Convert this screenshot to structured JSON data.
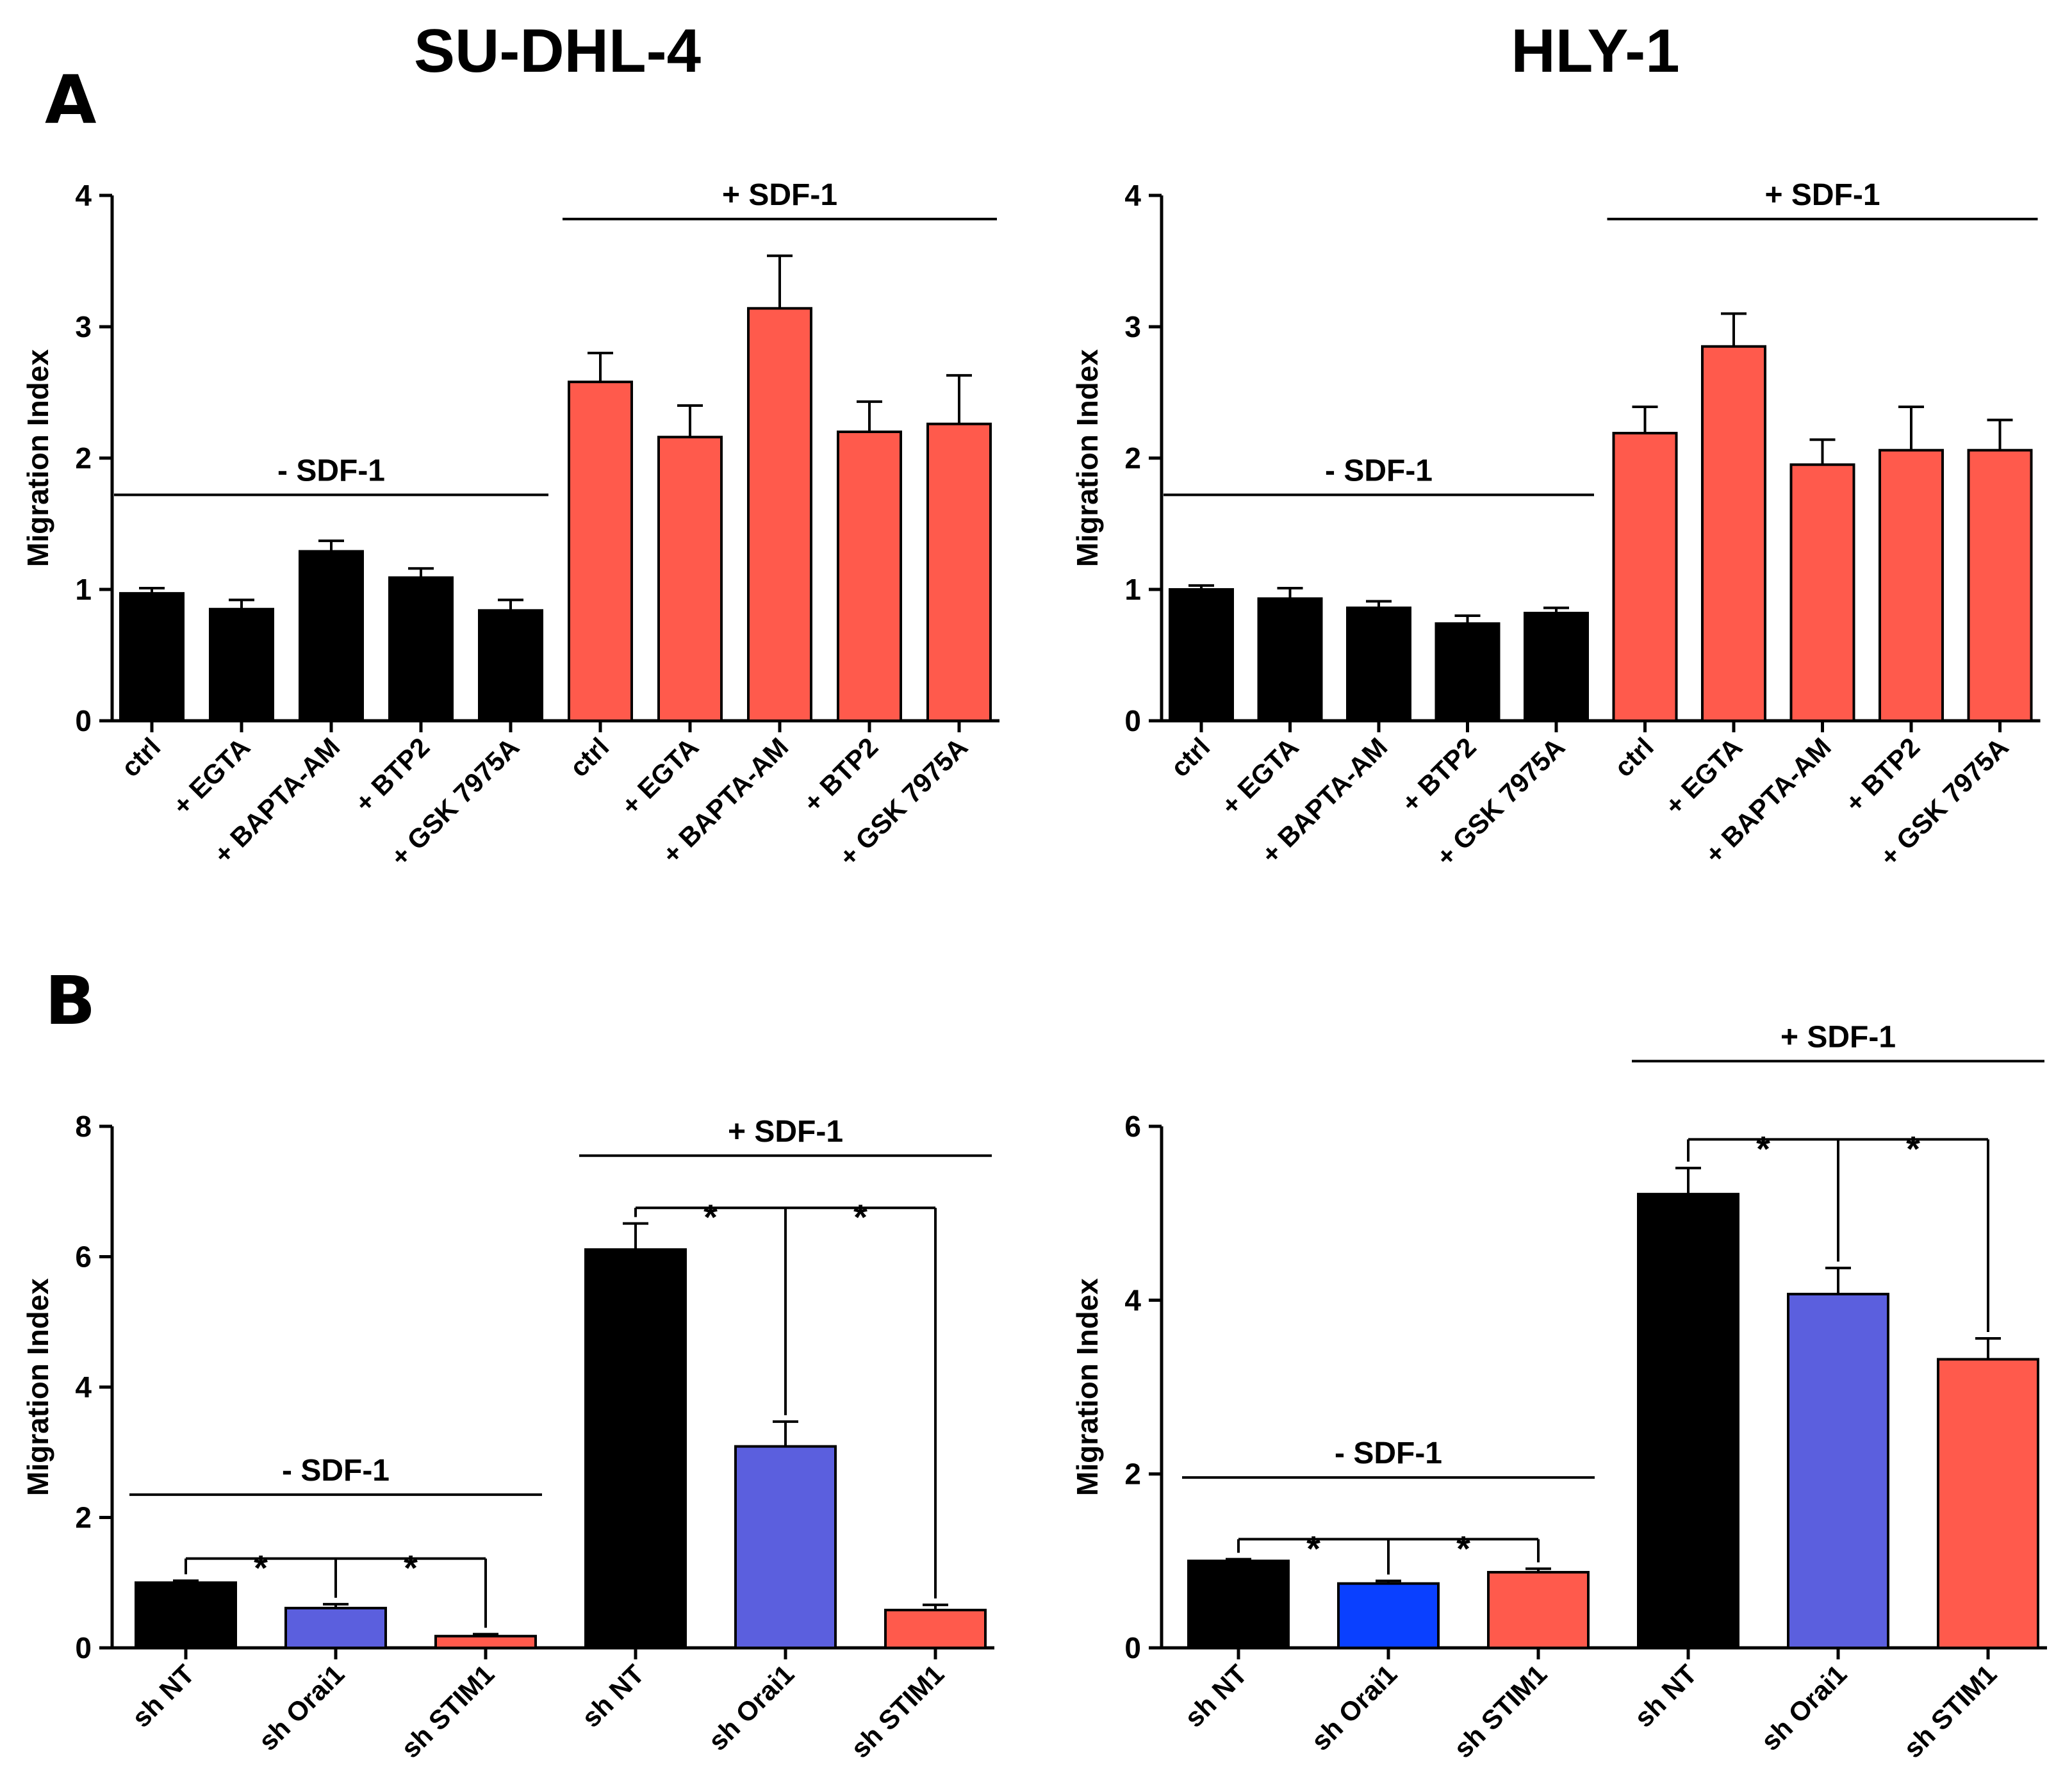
{
  "figure": {
    "column_titles": [
      "SU-DHL-4",
      "HLY-1"
    ],
    "panel_labels": [
      "A",
      "B"
    ],
    "colors": {
      "black": "#000000",
      "red": "#ff5a4c",
      "periwinkle": "#5b5fde",
      "blue": "#0a40ff"
    }
  },
  "chart_data": [
    {
      "id": "A_SUDHL4",
      "type": "bar",
      "ylabel": "Migration Index",
      "ylim": [
        0,
        4
      ],
      "yticks": [
        "0",
        "1",
        "2",
        "3",
        "4"
      ],
      "categories": [
        "ctrl",
        "+ EGTA",
        "+ BAPTA-AM",
        "+ BTP2",
        "+ GSK 7975A",
        "ctrl",
        "+ EGTA",
        "+ BAPTA-AM",
        "+ BTP2",
        "+ GSK 7975A"
      ],
      "values": [
        0.97,
        0.85,
        1.29,
        1.09,
        0.84,
        2.58,
        2.16,
        3.14,
        2.2,
        2.26
      ],
      "errors": [
        0.04,
        0.07,
        0.08,
        0.07,
        0.08,
        0.22,
        0.24,
        0.4,
        0.23,
        0.37
      ],
      "bar_colors": [
        "black",
        "black",
        "black",
        "black",
        "black",
        "red",
        "red",
        "red",
        "red",
        "red"
      ],
      "groups": [
        {
          "label": "- SDF-1",
          "y": 1.72,
          "from": 0,
          "to": 4
        },
        {
          "label": "+ SDF-1",
          "y": 3.82,
          "from": 5,
          "to": 9
        }
      ],
      "significance": []
    },
    {
      "id": "A_HLY1",
      "type": "bar",
      "ylabel": "Migration Index",
      "ylim": [
        0,
        4
      ],
      "yticks": [
        "0",
        "1",
        "2",
        "3",
        "4"
      ],
      "categories": [
        "ctrl",
        "+ EGTA",
        "+ BAPTA-AM",
        "+ BTP2",
        "+ GSK 7975A",
        "ctrl",
        "+ EGTA",
        "+ BAPTA-AM",
        "+ BTP2",
        "+ GSK 7975A"
      ],
      "values": [
        1.0,
        0.93,
        0.86,
        0.74,
        0.82,
        2.19,
        2.85,
        1.95,
        2.06,
        2.06
      ],
      "errors": [
        0.03,
        0.08,
        0.05,
        0.06,
        0.04,
        0.2,
        0.25,
        0.19,
        0.33,
        0.23
      ],
      "bar_colors": [
        "black",
        "black",
        "black",
        "black",
        "black",
        "red",
        "red",
        "red",
        "red",
        "red"
      ],
      "groups": [
        {
          "label": "- SDF-1",
          "y": 1.72,
          "from": 0,
          "to": 4
        },
        {
          "label": "+ SDF-1",
          "y": 3.82,
          "from": 5,
          "to": 9
        }
      ],
      "significance": []
    },
    {
      "id": "B_SUDHL4",
      "type": "bar",
      "ylabel": "Migration Index",
      "ylim": [
        0,
        8
      ],
      "yticks": [
        "0",
        "2",
        "4",
        "6",
        "8"
      ],
      "categories": [
        "sh NT",
        "sh Orai1",
        "sh STIM1",
        "sh NT",
        "sh Orai1",
        "sh STIM1"
      ],
      "values": [
        1.0,
        0.61,
        0.18,
        6.11,
        3.09,
        0.58
      ],
      "errors": [
        0.03,
        0.06,
        0.03,
        0.4,
        0.38,
        0.08
      ],
      "bar_colors": [
        "black",
        "periwinkle",
        "red",
        "black",
        "periwinkle",
        "red"
      ],
      "groups": [
        {
          "label": "- SDF-1",
          "y": 2.35,
          "from": 0,
          "to": 2
        },
        {
          "label": "+ SDF-1",
          "y": 7.55,
          "from": 3,
          "to": 5
        }
      ],
      "significance": [
        {
          "base": 0,
          "targets": [
            1,
            2
          ],
          "y": 1.37,
          "label": "*"
        },
        {
          "base": 3,
          "targets": [
            4,
            5
          ],
          "y": 6.75,
          "label": "*"
        }
      ]
    },
    {
      "id": "B_HLY1",
      "type": "bar",
      "ylabel": "Migration Index",
      "ylim": [
        0,
        6
      ],
      "yticks": [
        "0",
        "2",
        "4",
        "6"
      ],
      "categories": [
        "sh NT",
        "sh Orai1",
        "sh STIM1",
        "sh NT",
        "sh Orai1",
        "sh STIM1"
      ],
      "values": [
        1.0,
        0.74,
        0.87,
        5.22,
        4.07,
        3.32
      ],
      "errors": [
        0.02,
        0.03,
        0.04,
        0.3,
        0.3,
        0.24
      ],
      "bar_colors": [
        "black",
        "blue",
        "red",
        "black",
        "periwinkle",
        "red"
      ],
      "groups": [
        {
          "label": "- SDF-1",
          "y": 1.96,
          "from": 0,
          "to": 2
        },
        {
          "label": "+ SDF-1",
          "y": 6.75,
          "from": 3,
          "to": 5
        }
      ],
      "significance": [
        {
          "base": 0,
          "targets": [
            1,
            2
          ],
          "y": 1.25,
          "label": "*"
        },
        {
          "base": 3,
          "targets": [
            4,
            5
          ],
          "y": 5.85,
          "label": "*"
        }
      ]
    }
  ]
}
